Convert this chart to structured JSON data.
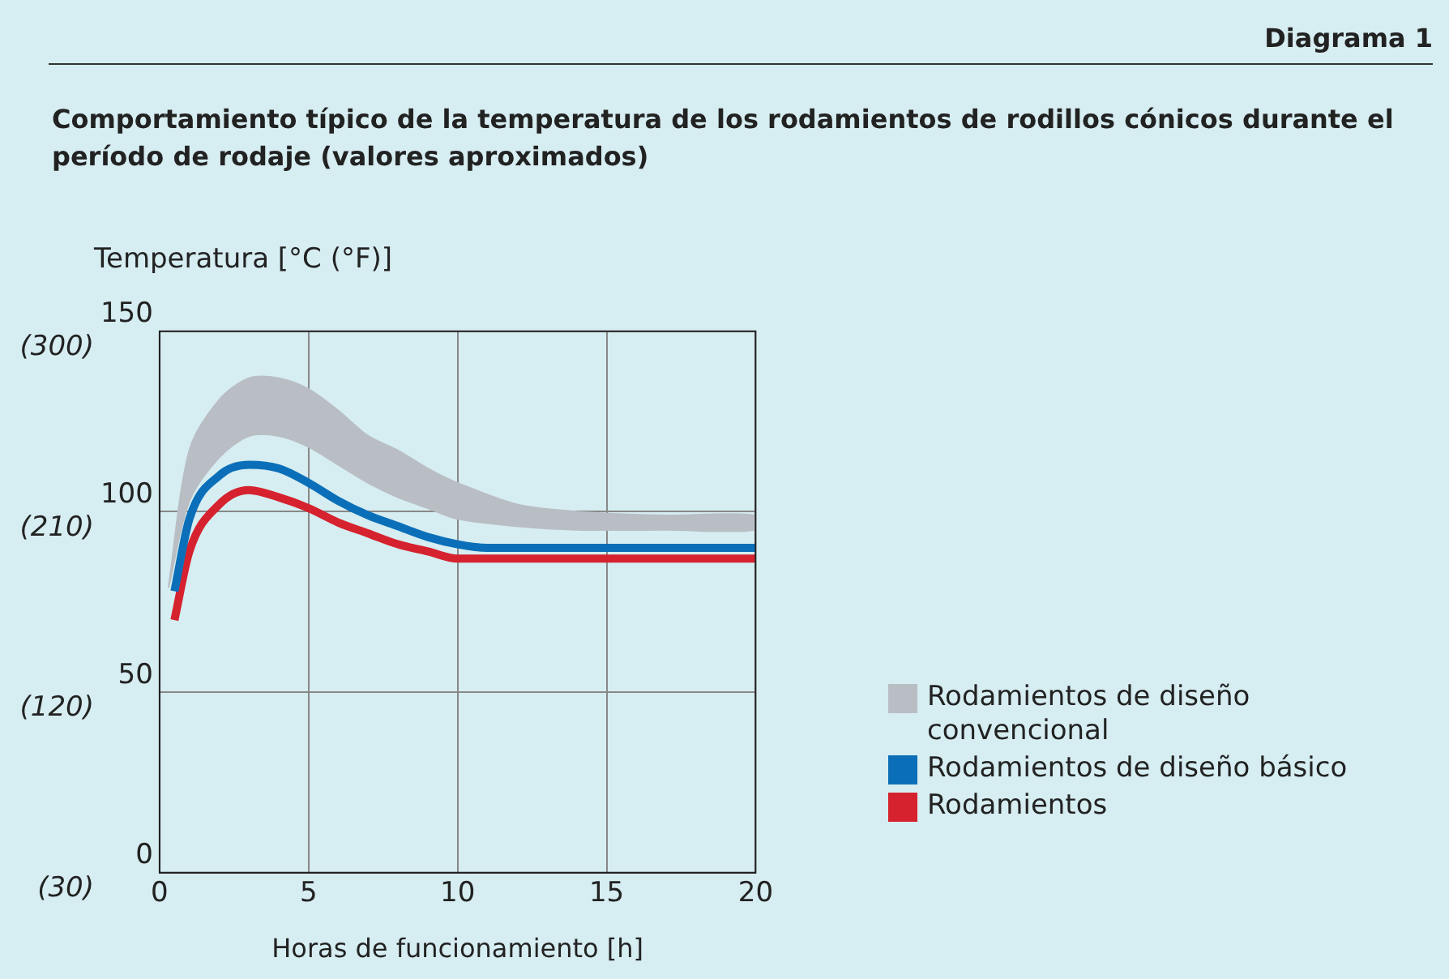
{
  "chart_data": {
    "type": "line",
    "subtitle": "Diagrama 1",
    "title": "Comportamiento típico de la temperatura de los rodamientos de rodillos cónicos durante el período de rodaje (valores aproximados)",
    "ylabel": "Temperatura [°C (°F)]",
    "xlabel": "Horas de funcionamiento [h]",
    "xlim": [
      0,
      20
    ],
    "xticks": [
      0,
      5,
      10,
      15,
      20
    ],
    "ylim": [
      0,
      150
    ],
    "yticks": [
      0,
      50,
      100,
      150
    ],
    "y2lim": [
      30,
      300
    ],
    "y2ticks": [
      {
        "value": 30,
        "label": "(30)"
      },
      {
        "value": 120,
        "label": "(120)"
      },
      {
        "value": 210,
        "label": "(210)"
      },
      {
        "value": 300,
        "label": "(300)"
      }
    ],
    "grid": true,
    "legend": "right",
    "series": [
      {
        "name": "Rodamientos de diseño convencional",
        "type": "area",
        "color": "#b9bec4",
        "x": [
          0.3,
          1,
          2,
          3,
          4,
          5,
          6,
          7,
          8,
          9,
          10,
          12,
          14,
          17,
          20
        ],
        "lower": [
          79,
          103,
          115,
          121,
          121,
          118,
          113,
          108,
          104,
          101,
          98,
          96,
          95,
          95,
          95
        ],
        "upper": [
          79,
          117,
          131,
          137,
          137,
          134,
          128,
          121,
          117,
          112,
          108,
          102,
          100,
          99,
          99
        ],
        "values": [
          null,
          null,
          null,
          null,
          null,
          null,
          null,
          null,
          null,
          null,
          null,
          null,
          null,
          null,
          null
        ]
      },
      {
        "name": "Rodamientos de diseño básico",
        "color": "#0a6fb8",
        "x": [
          0.5,
          1,
          2,
          3,
          4,
          5,
          6,
          7,
          8,
          9,
          10,
          11,
          20
        ],
        "values": [
          78,
          98,
          110,
          113,
          112,
          108,
          103,
          99,
          96,
          93,
          91,
          90,
          90
        ]
      },
      {
        "name": "Rodamientos",
        "color": "#d5222e",
        "x": [
          0.5,
          1,
          2,
          3,
          4,
          5,
          6,
          7,
          8,
          9,
          10,
          11,
          20
        ],
        "values": [
          70,
          89,
          102,
          106,
          104,
          101,
          97,
          94,
          91,
          89,
          87,
          87,
          87
        ]
      }
    ]
  }
}
